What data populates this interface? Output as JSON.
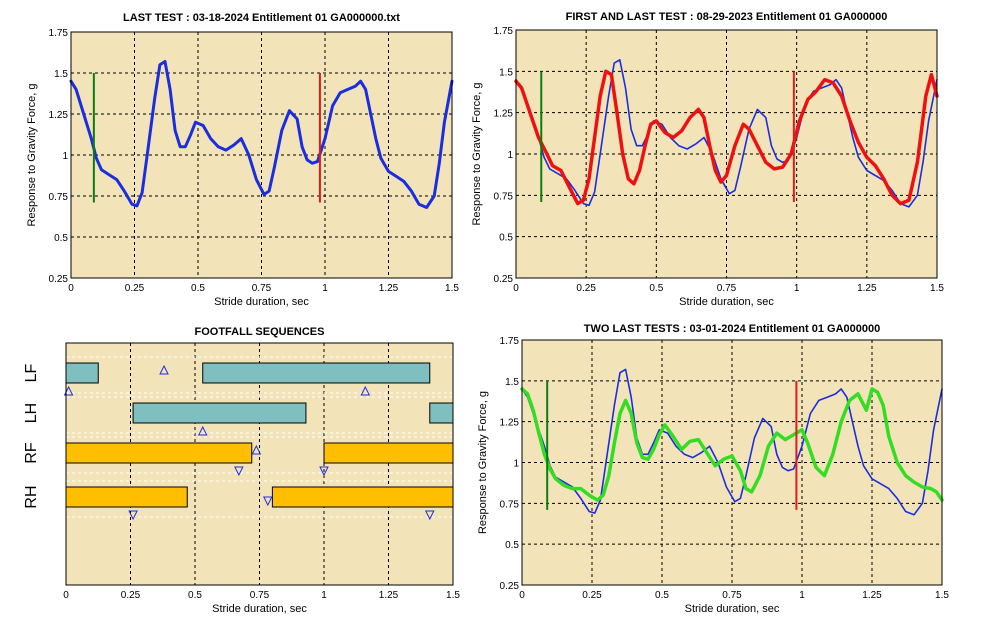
{
  "chart_data": [
    {
      "id": "last-test",
      "type": "line",
      "title": "LAST TEST : 03-18-2024 Entitlement 01 GA000000.txt",
      "xlabel": "Stride duration, sec",
      "ylabel": "Response to Gravity Force, g",
      "xlim": [
        0,
        1.5
      ],
      "ylim": [
        0.25,
        1.75
      ],
      "xticks": [
        "0",
        "0.25",
        "0.5",
        "0.75",
        "1",
        "1.25",
        "1.5"
      ],
      "yticks": [
        "0.25",
        "0.5",
        "0.75",
        "1",
        "1.25",
        "1.5",
        "1.75"
      ],
      "grid": true,
      "background": "#f2e4b8",
      "markers": [
        {
          "x": 0.09,
          "y": [
            0.71,
            1.5
          ],
          "color": "#0b7d0b"
        },
        {
          "x": 0.98,
          "y": [
            0.71,
            1.5
          ],
          "color": "#dd1c1c"
        }
      ],
      "series": [
        {
          "color": "#1a2ee0",
          "width": 3,
          "x": [
            0,
            0.02,
            0.05,
            0.08,
            0.1,
            0.12,
            0.15,
            0.18,
            0.21,
            0.24,
            0.26,
            0.28,
            0.3,
            0.33,
            0.35,
            0.37,
            0.39,
            0.41,
            0.43,
            0.45,
            0.47,
            0.49,
            0.52,
            0.55,
            0.58,
            0.61,
            0.64,
            0.67,
            0.7,
            0.73,
            0.76,
            0.78,
            0.8,
            0.83,
            0.86,
            0.89,
            0.91,
            0.93,
            0.95,
            0.97,
            1.0,
            1.03,
            1.06,
            1.09,
            1.12,
            1.14,
            1.16,
            1.18,
            1.2,
            1.22,
            1.25,
            1.28,
            1.31,
            1.34,
            1.37,
            1.4,
            1.43,
            1.45,
            1.47,
            1.5
          ],
          "y": [
            1.45,
            1.4,
            1.25,
            1.1,
            0.98,
            0.91,
            0.88,
            0.85,
            0.78,
            0.7,
            0.69,
            0.77,
            1.0,
            1.35,
            1.55,
            1.57,
            1.4,
            1.15,
            1.05,
            1.05,
            1.12,
            1.2,
            1.18,
            1.1,
            1.05,
            1.03,
            1.06,
            1.1,
            1.0,
            0.85,
            0.76,
            0.78,
            0.92,
            1.15,
            1.27,
            1.22,
            1.05,
            0.97,
            0.95,
            0.96,
            1.1,
            1.3,
            1.38,
            1.4,
            1.42,
            1.45,
            1.4,
            1.25,
            1.1,
            0.98,
            0.9,
            0.87,
            0.84,
            0.78,
            0.7,
            0.68,
            0.75,
            0.95,
            1.2,
            1.45
          ]
        }
      ]
    },
    {
      "id": "first-and-last-test",
      "type": "line",
      "title": "FIRST AND LAST TEST : 08-29-2023 Entitlement 01 GA000000",
      "xlabel": "Stride duration, sec",
      "ylabel": "Response to Gravity Force, g",
      "xlim": [
        0,
        1.5
      ],
      "ylim": [
        0.25,
        1.75
      ],
      "xticks": [
        "0",
        "0.25",
        "0.5",
        "0.75",
        "1",
        "1.25",
        "1.5"
      ],
      "yticks": [
        "0.25",
        "0.5",
        "0.75",
        "1",
        "1.25",
        "1.5",
        "1.75"
      ],
      "grid": true,
      "background": "#f2e4b8",
      "markers": [
        {
          "x": 0.09,
          "y": [
            0.71,
            1.5
          ],
          "color": "#0b7d0b"
        },
        {
          "x": 0.99,
          "y": [
            0.71,
            1.5
          ],
          "color": "#dd1c1c"
        }
      ],
      "series": [
        {
          "color": "#1a2ee0",
          "width": 1.6,
          "x": [
            0,
            0.02,
            0.05,
            0.08,
            0.1,
            0.12,
            0.15,
            0.18,
            0.21,
            0.24,
            0.26,
            0.28,
            0.3,
            0.33,
            0.35,
            0.37,
            0.39,
            0.41,
            0.43,
            0.45,
            0.47,
            0.49,
            0.52,
            0.55,
            0.58,
            0.61,
            0.64,
            0.67,
            0.7,
            0.73,
            0.76,
            0.78,
            0.8,
            0.83,
            0.86,
            0.89,
            0.91,
            0.93,
            0.95,
            0.97,
            1.0,
            1.03,
            1.06,
            1.09,
            1.12,
            1.14,
            1.16,
            1.18,
            1.2,
            1.22,
            1.25,
            1.28,
            1.31,
            1.34,
            1.37,
            1.4,
            1.43,
            1.45,
            1.47,
            1.5
          ],
          "y": [
            1.45,
            1.4,
            1.25,
            1.1,
            0.98,
            0.91,
            0.88,
            0.85,
            0.78,
            0.7,
            0.69,
            0.77,
            1.0,
            1.35,
            1.55,
            1.57,
            1.4,
            1.15,
            1.05,
            1.05,
            1.12,
            1.2,
            1.18,
            1.1,
            1.05,
            1.03,
            1.06,
            1.1,
            1.0,
            0.85,
            0.76,
            0.78,
            0.92,
            1.15,
            1.27,
            1.22,
            1.05,
            0.97,
            0.95,
            0.96,
            1.1,
            1.3,
            1.38,
            1.4,
            1.42,
            1.45,
            1.4,
            1.25,
            1.1,
            0.98,
            0.9,
            0.87,
            0.84,
            0.78,
            0.7,
            0.68,
            0.75,
            0.95,
            1.2,
            1.45
          ]
        },
        {
          "color": "#ee1111",
          "width": 3.5,
          "x": [
            0,
            0.02,
            0.05,
            0.08,
            0.11,
            0.13,
            0.16,
            0.19,
            0.22,
            0.24,
            0.26,
            0.28,
            0.3,
            0.32,
            0.34,
            0.36,
            0.38,
            0.4,
            0.42,
            0.44,
            0.46,
            0.48,
            0.5,
            0.53,
            0.56,
            0.59,
            0.62,
            0.65,
            0.67,
            0.69,
            0.71,
            0.73,
            0.75,
            0.78,
            0.81,
            0.83,
            0.86,
            0.89,
            0.92,
            0.95,
            0.98,
            1.01,
            1.04,
            1.07,
            1.1,
            1.13,
            1.16,
            1.19,
            1.22,
            1.25,
            1.28,
            1.31,
            1.34,
            1.37,
            1.4,
            1.43,
            1.46,
            1.48,
            1.5
          ],
          "y": [
            1.44,
            1.4,
            1.25,
            1.1,
            1.0,
            0.93,
            0.9,
            0.8,
            0.7,
            0.72,
            0.85,
            1.1,
            1.35,
            1.5,
            1.48,
            1.25,
            1.0,
            0.85,
            0.82,
            0.9,
            1.05,
            1.18,
            1.2,
            1.13,
            1.1,
            1.14,
            1.22,
            1.27,
            1.22,
            1.05,
            0.9,
            0.83,
            0.87,
            1.05,
            1.18,
            1.15,
            1.05,
            0.95,
            0.91,
            0.92,
            1.0,
            1.2,
            1.33,
            1.38,
            1.45,
            1.43,
            1.35,
            1.2,
            1.07,
            0.98,
            0.93,
            0.85,
            0.75,
            0.7,
            0.72,
            0.95,
            1.35,
            1.48,
            1.35
          ]
        }
      ]
    },
    {
      "id": "footfall-sequences",
      "type": "gantt",
      "title": "FOOTFALL SEQUENCES",
      "xlabel": "Stride duration, sec",
      "xlim": [
        0,
        1.5
      ],
      "xticks": [
        "0",
        "0.25",
        "0.5",
        "0.75",
        "1",
        "1.25",
        "1.5"
      ],
      "grid": true,
      "background": "#f2e4b8",
      "lanes": [
        {
          "label": "LF",
          "color": "#7fbfbf",
          "bars": [
            [
              0,
              0.125
            ],
            [
              0.53,
              1.41
            ]
          ],
          "up_triangles": [
            {
              "x": 0.01,
              "pos": "below"
            },
            {
              "x": 0.38,
              "pos": "above"
            },
            {
              "x": 1.16,
              "pos": "below"
            }
          ],
          "down_triangles": []
        },
        {
          "label": "LH",
          "color": "#7fbfbf",
          "bars": [
            [
              0.26,
              0.93
            ],
            [
              1.41,
              1.5
            ]
          ],
          "up_triangles": [
            {
              "x": 0.53,
              "pos": "below"
            }
          ],
          "down_triangles": []
        },
        {
          "label": "RF",
          "color": "#ffbf00",
          "bars": [
            [
              0,
              0.72
            ],
            [
              1.0,
              1.5
            ]
          ],
          "up_triangles": [
            {
              "x": 0.73,
              "pos": "right"
            }
          ],
          "down_triangles": [
            {
              "x": 0.67,
              "pos": "below"
            },
            {
              "x": 1.0,
              "pos": "below"
            }
          ]
        },
        {
          "label": "RH",
          "color": "#ffbf00",
          "bars": [
            [
              0,
              0.47
            ],
            [
              0.8,
              1.5
            ]
          ],
          "up_triangles": [],
          "down_triangles": [
            {
              "x": 0.26,
              "pos": "below"
            },
            {
              "x": 0.79,
              "pos": "left"
            },
            {
              "x": 1.41,
              "pos": "below"
            }
          ]
        }
      ]
    },
    {
      "id": "two-last-tests",
      "type": "line",
      "title": "TWO LAST TESTS : 03-01-2024 Entitlement 01 GA000000",
      "xlabel": "Stride duration, sec",
      "ylabel": "Response to Gravity Force, g",
      "xlim": [
        0,
        1.5
      ],
      "ylim": [
        0.25,
        1.75
      ],
      "xticks": [
        "0",
        "0.25",
        "0.5",
        "0.75",
        "1",
        "1.25",
        "1.5"
      ],
      "yticks": [
        "0.25",
        "0.5",
        "0.75",
        "1",
        "1.25",
        "1.5",
        "1.75"
      ],
      "grid": true,
      "background": "#f2e4b8",
      "markers": [
        {
          "x": 0.09,
          "y": [
            0.71,
            1.5
          ],
          "color": "#0b7d0b"
        },
        {
          "x": 0.98,
          "y": [
            0.71,
            1.5
          ],
          "color": "#dd1c1c"
        }
      ],
      "series": [
        {
          "color": "#1a2ee0",
          "width": 1.6,
          "x": [
            0,
            0.02,
            0.05,
            0.08,
            0.1,
            0.12,
            0.15,
            0.18,
            0.21,
            0.24,
            0.26,
            0.28,
            0.3,
            0.33,
            0.35,
            0.37,
            0.39,
            0.41,
            0.43,
            0.45,
            0.47,
            0.49,
            0.52,
            0.55,
            0.58,
            0.61,
            0.64,
            0.67,
            0.7,
            0.73,
            0.76,
            0.78,
            0.8,
            0.83,
            0.86,
            0.89,
            0.91,
            0.93,
            0.95,
            0.97,
            1.0,
            1.03,
            1.06,
            1.09,
            1.12,
            1.14,
            1.16,
            1.18,
            1.2,
            1.22,
            1.25,
            1.28,
            1.31,
            1.34,
            1.37,
            1.4,
            1.43,
            1.45,
            1.47,
            1.5
          ],
          "y": [
            1.45,
            1.4,
            1.25,
            1.1,
            0.98,
            0.91,
            0.88,
            0.85,
            0.78,
            0.7,
            0.69,
            0.77,
            1.0,
            1.35,
            1.55,
            1.57,
            1.4,
            1.15,
            1.05,
            1.05,
            1.12,
            1.2,
            1.18,
            1.1,
            1.05,
            1.03,
            1.06,
            1.1,
            1.0,
            0.85,
            0.76,
            0.78,
            0.92,
            1.15,
            1.27,
            1.22,
            1.05,
            0.97,
            0.95,
            0.96,
            1.1,
            1.3,
            1.38,
            1.4,
            1.42,
            1.45,
            1.4,
            1.25,
            1.1,
            0.98,
            0.9,
            0.87,
            0.84,
            0.78,
            0.7,
            0.68,
            0.75,
            0.95,
            1.2,
            1.45
          ]
        },
        {
          "color": "#33dd22",
          "width": 3.5,
          "x": [
            0,
            0.02,
            0.04,
            0.06,
            0.08,
            0.1,
            0.12,
            0.15,
            0.18,
            0.21,
            0.24,
            0.27,
            0.29,
            0.31,
            0.33,
            0.35,
            0.37,
            0.39,
            0.41,
            0.43,
            0.45,
            0.47,
            0.49,
            0.51,
            0.54,
            0.57,
            0.6,
            0.63,
            0.66,
            0.69,
            0.72,
            0.75,
            0.78,
            0.8,
            0.82,
            0.85,
            0.88,
            0.91,
            0.94,
            0.97,
            1.0,
            1.02,
            1.05,
            1.08,
            1.11,
            1.14,
            1.17,
            1.2,
            1.23,
            1.25,
            1.27,
            1.29,
            1.31,
            1.34,
            1.37,
            1.4,
            1.43,
            1.46,
            1.48,
            1.5
          ],
          "y": [
            1.45,
            1.42,
            1.32,
            1.18,
            1.05,
            0.96,
            0.9,
            0.86,
            0.84,
            0.84,
            0.8,
            0.77,
            0.8,
            0.92,
            1.12,
            1.3,
            1.38,
            1.3,
            1.12,
            1.03,
            1.02,
            1.08,
            1.17,
            1.23,
            1.16,
            1.08,
            1.13,
            1.14,
            1.06,
            0.98,
            1.02,
            1.04,
            0.95,
            0.84,
            0.82,
            0.92,
            1.1,
            1.18,
            1.14,
            1.17,
            1.2,
            1.12,
            0.97,
            0.92,
            1.05,
            1.25,
            1.38,
            1.42,
            1.32,
            1.45,
            1.43,
            1.35,
            1.16,
            1.0,
            0.92,
            0.88,
            0.85,
            0.84,
            0.82,
            0.77
          ]
        }
      ]
    }
  ]
}
